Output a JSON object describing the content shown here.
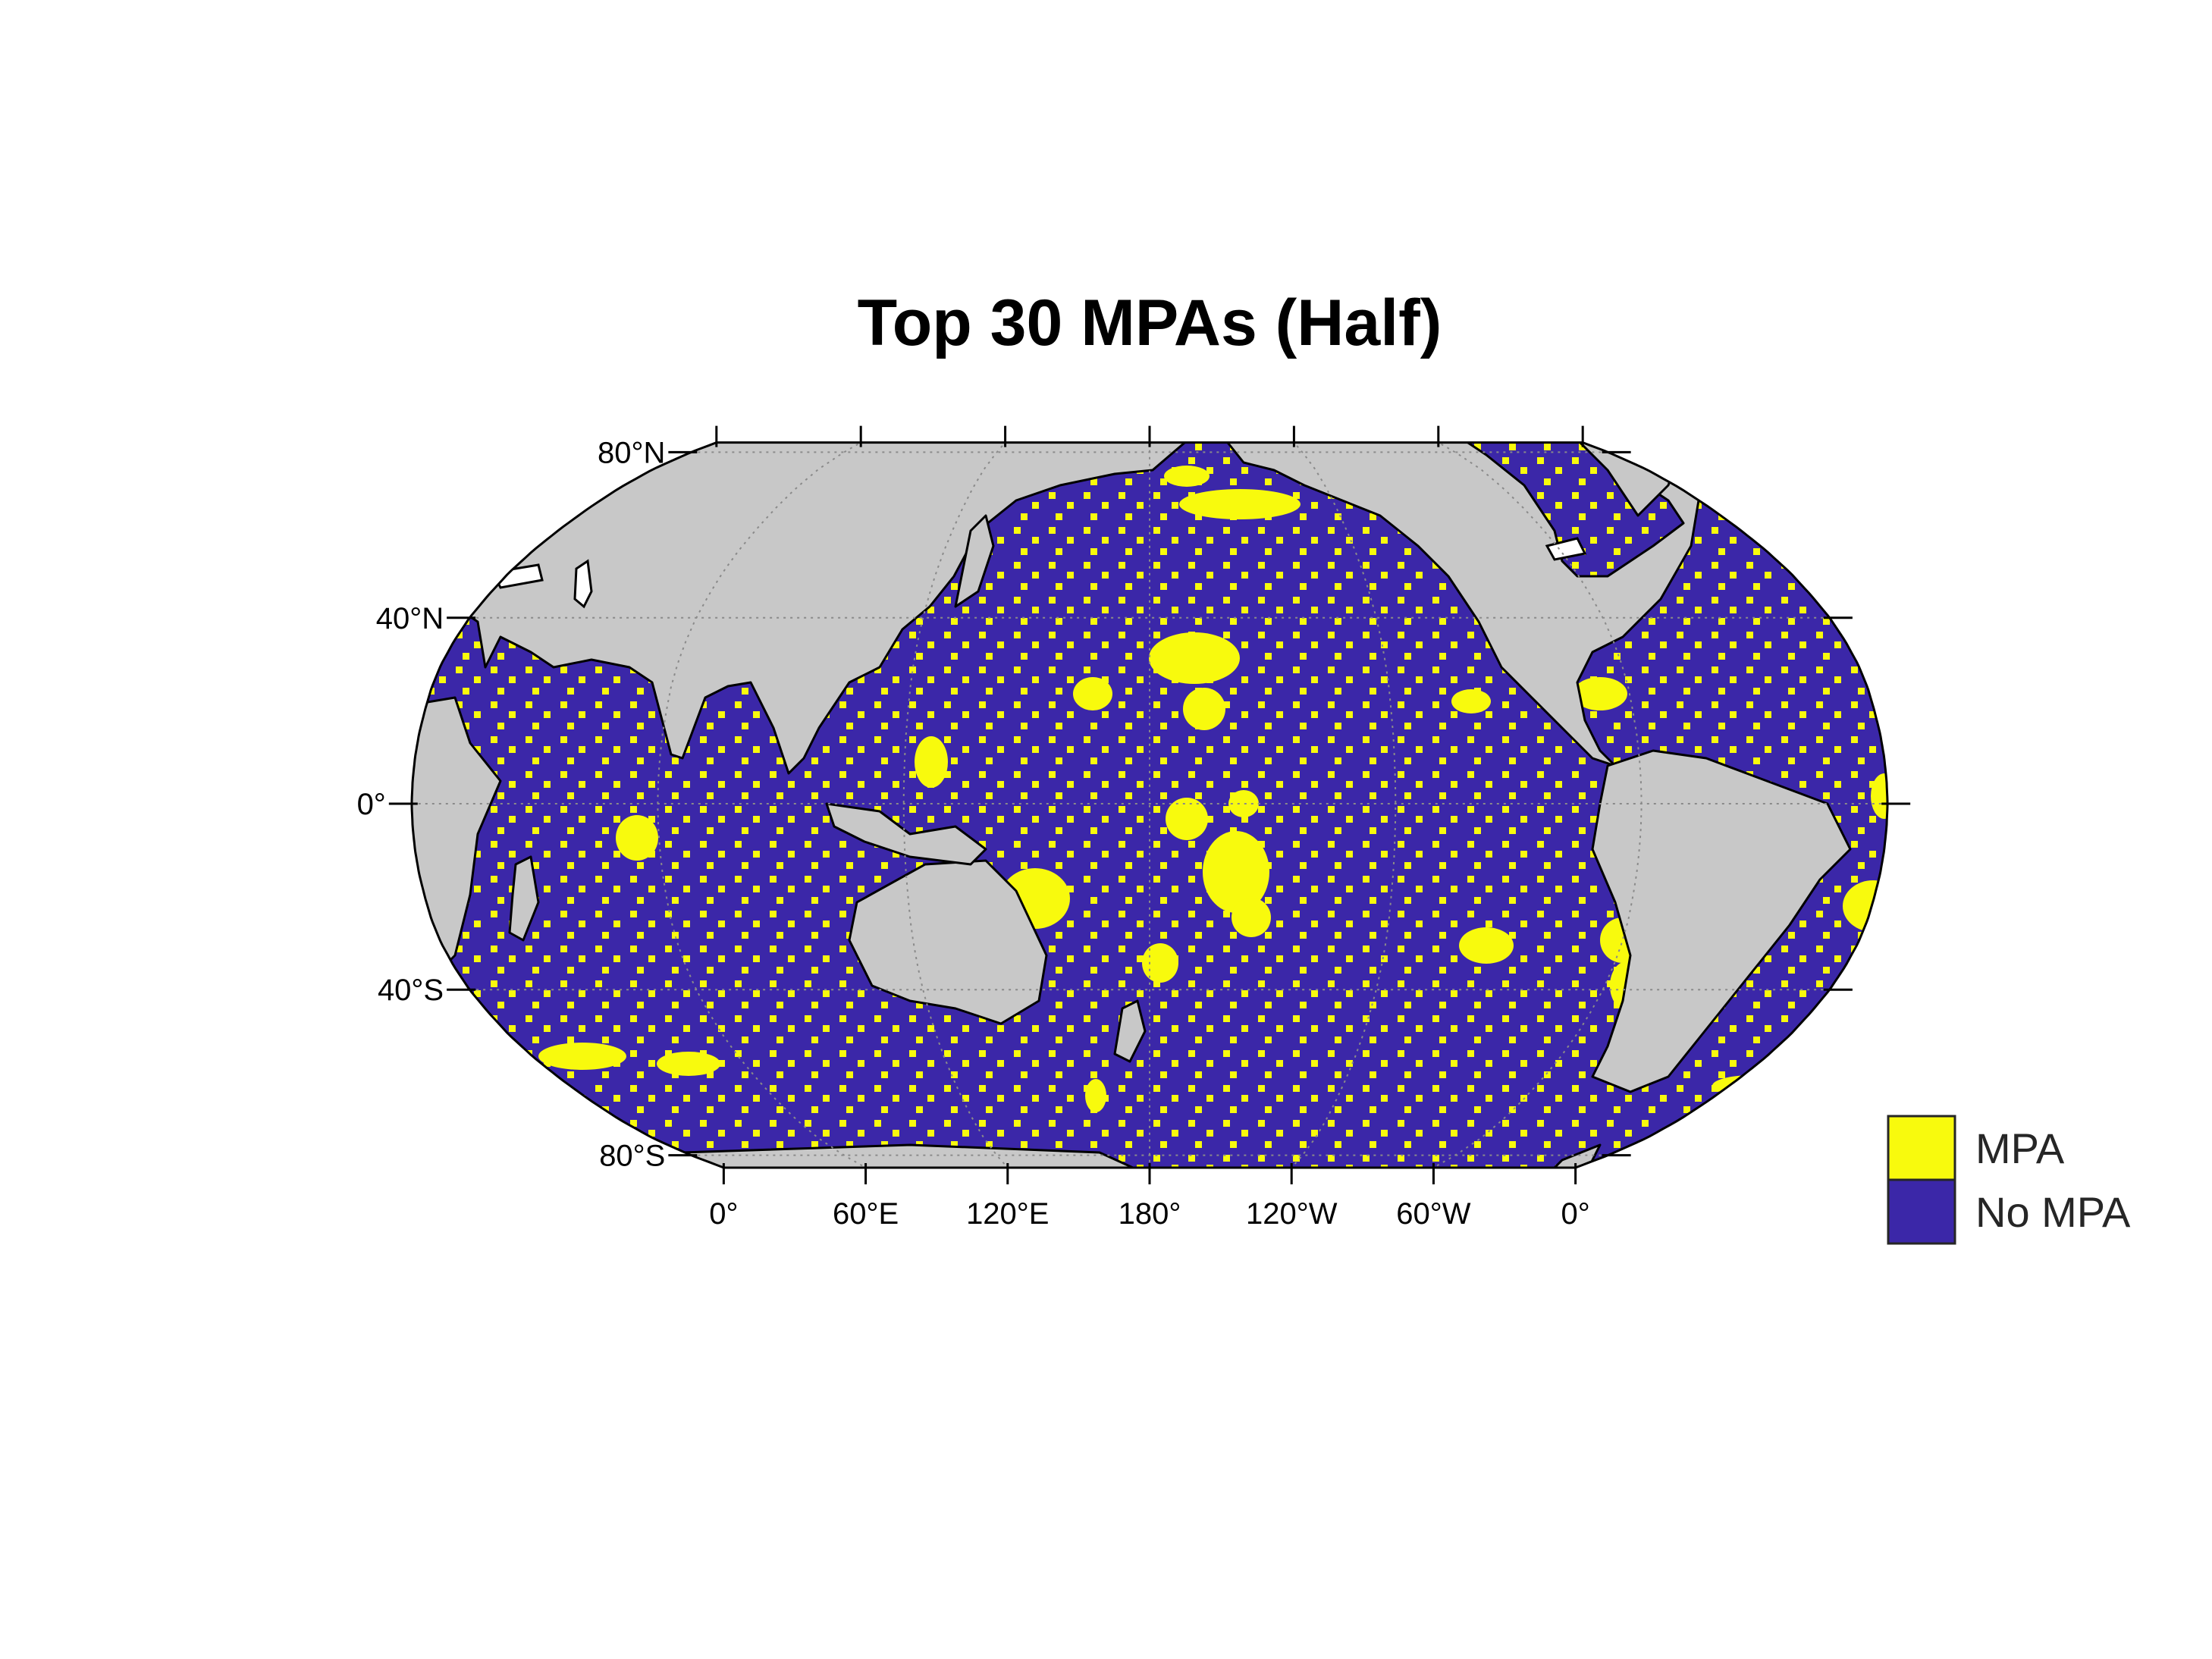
{
  "title": "Top 30 MPAs (Half)",
  "projection": "robinson",
  "central_meridian": "180°",
  "graticule": "dotted",
  "colors": {
    "mpa": "#f8fa0d",
    "no_mpa": "#3b27a8",
    "land": "#c8c8c8",
    "lake": "#ffffff",
    "coastline": "#000000",
    "frame": "#000000"
  },
  "latitude_labels": [
    "80°N",
    "40°N",
    "0°",
    "40°S",
    "80°S"
  ],
  "latitude_values": [
    80,
    40,
    0,
    -40,
    -80
  ],
  "longitude_labels": [
    "0°",
    "60°E",
    "120°E",
    "180°",
    "120°W",
    "60°W",
    "0°"
  ],
  "longitude_values": [
    0,
    60,
    120,
    180,
    -120,
    -60,
    0
  ],
  "legend": {
    "items": [
      {
        "label": "MPA",
        "color": "#f8fa0d"
      },
      {
        "label": "No MPA",
        "color": "#3b27a8"
      }
    ]
  }
}
